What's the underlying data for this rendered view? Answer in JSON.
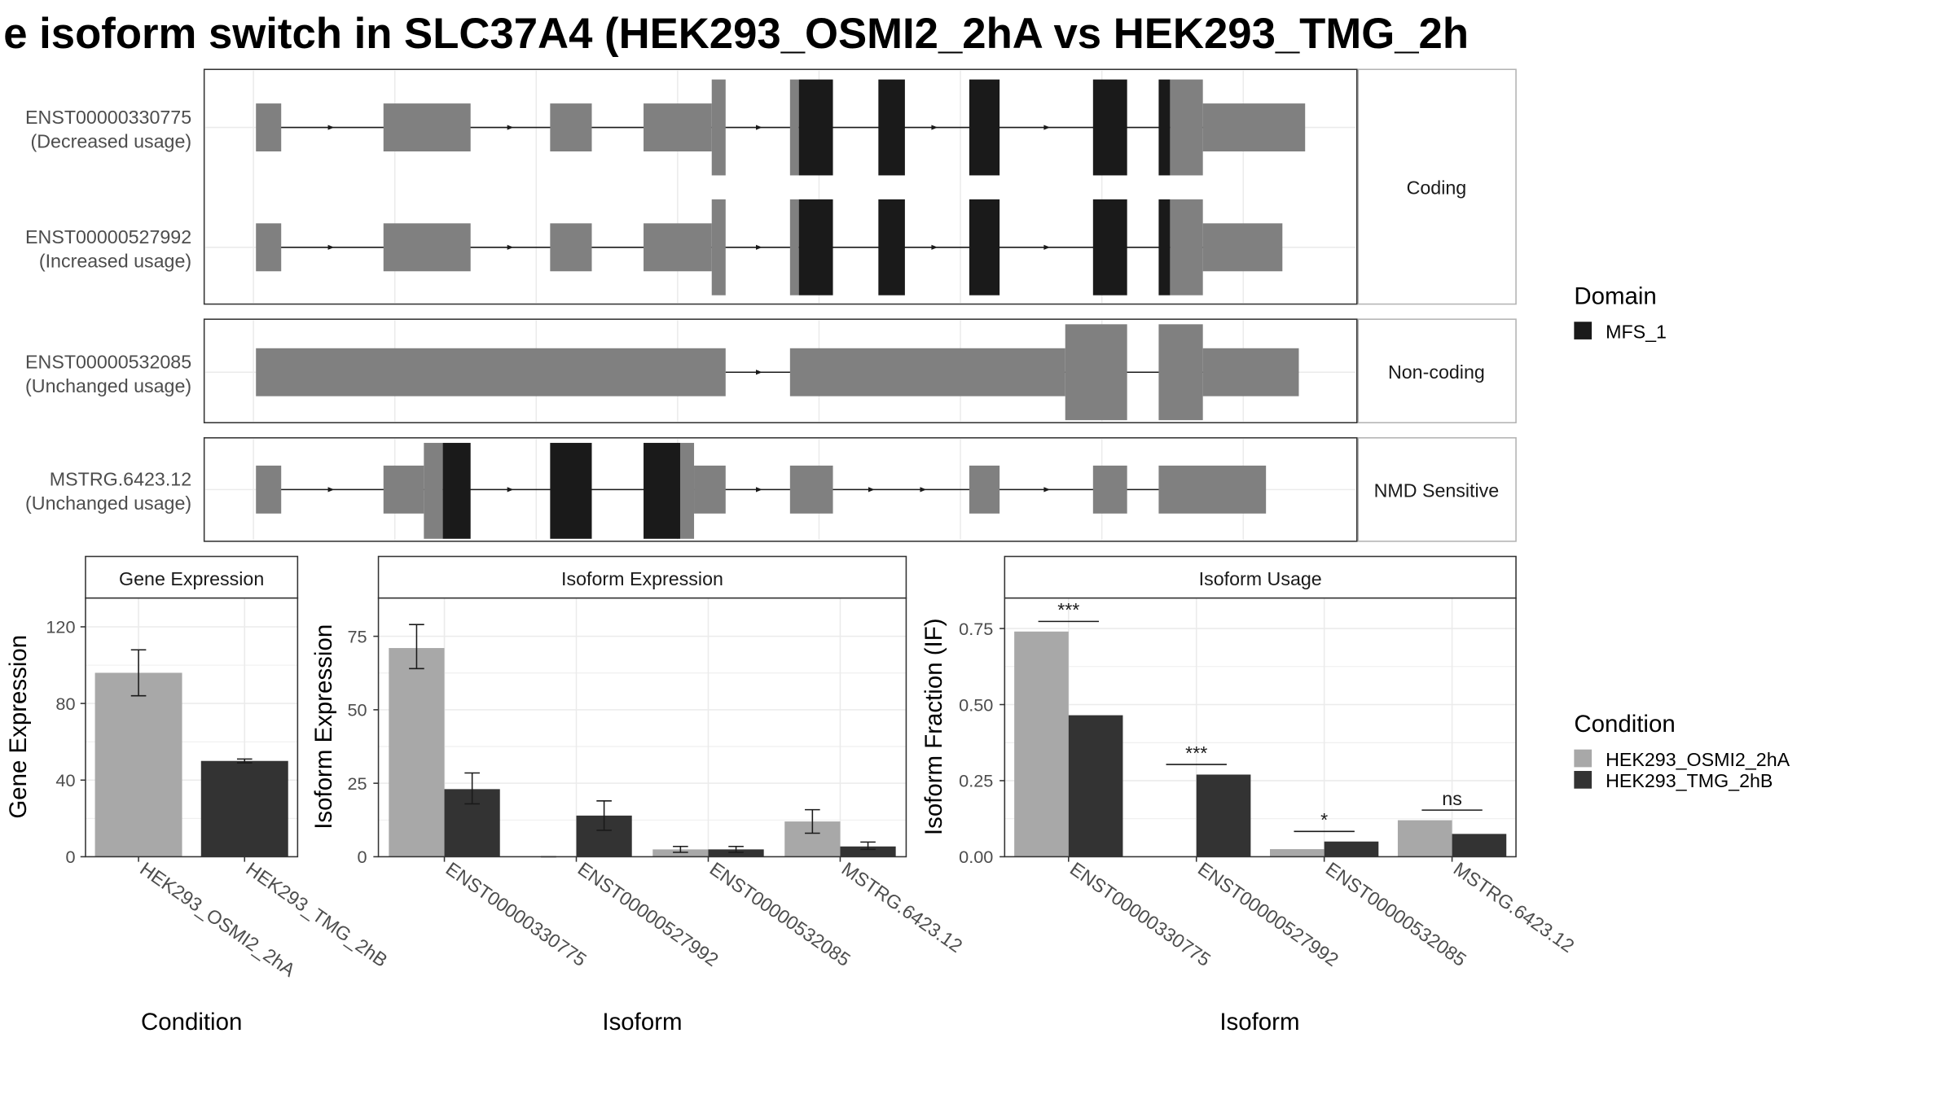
{
  "page": {
    "title": "e isoform switch in SLC37A4 (HEK293_OSMI2_2hA vs HEK293_TMG_2h",
    "colors": {
      "cond_a": "#a8a8a8",
      "cond_b": "#333333",
      "exon": "#808080",
      "domain": "#1a1a1a",
      "grid": "#ebebeb",
      "frame": "#333333",
      "strip_border": "#b3b3b3"
    }
  },
  "structure": {
    "panels": [
      {
        "label": "Coding",
        "isoforms": [
          {
            "id": "ENST00000330775",
            "usage": "(Decreased usage)"
          },
          {
            "id": "ENST00000527992",
            "usage": "(Increased usage)"
          }
        ]
      },
      {
        "label": "Non-coding",
        "isoforms": [
          {
            "id": "ENST00000532085",
            "usage": "(Unchanged usage)"
          }
        ]
      },
      {
        "label": "NMD Sensitive",
        "isoforms": [
          {
            "id": "MSTRG.6423.12",
            "usage": "(Unchanged usage)"
          }
        ]
      }
    ]
  },
  "legend": {
    "domain": {
      "title": "Domain",
      "items": [
        {
          "label": "MFS_1",
          "color": "#1a1a1a"
        }
      ]
    },
    "condition": {
      "title": "Condition",
      "items": [
        {
          "label": "HEK293_OSMI2_2hA",
          "color": "#a8a8a8"
        },
        {
          "label": "HEK293_TMG_2hB",
          "color": "#333333"
        }
      ]
    }
  },
  "chart_data": [
    {
      "type": "bar",
      "title": "Gene Expression",
      "xlabel": "Condition",
      "ylabel": "Gene Expression",
      "categories": [
        "HEK293_OSMI2_2hA",
        "HEK293_TMG_2hB"
      ],
      "values": [
        96,
        50
      ],
      "error_low": [
        84,
        49
      ],
      "error_high": [
        108,
        51
      ],
      "ylim": [
        0,
        135
      ],
      "yticks": [
        0,
        40,
        80,
        120
      ],
      "ytick_labels": [
        "0",
        "40",
        "80",
        "120"
      ]
    },
    {
      "type": "bar",
      "title": "Isoform Expression",
      "xlabel": "Isoform",
      "ylabel": "Isoform Expression",
      "categories": [
        "ENST00000330775",
        "ENST00000527992",
        "ENST00000532085",
        "MSTRG.6423.12"
      ],
      "ylim": [
        0,
        88
      ],
      "yticks": [
        0,
        25,
        50,
        75
      ],
      "ytick_labels": [
        "0",
        "25",
        "50",
        "75"
      ],
      "series": [
        {
          "name": "HEK293_OSMI2_2hA",
          "values": [
            71,
            0,
            2.5,
            12
          ],
          "error_low": [
            64,
            0,
            1.5,
            8
          ],
          "error_high": [
            79,
            0,
            3.5,
            16
          ]
        },
        {
          "name": "HEK293_TMG_2hB",
          "values": [
            23,
            14,
            2.5,
            3.5
          ],
          "error_low": [
            18,
            9,
            1.5,
            2.5
          ],
          "error_high": [
            28.5,
            19,
            3.5,
            5
          ]
        }
      ]
    },
    {
      "type": "bar",
      "title": "Isoform Usage",
      "xlabel": "Isoform",
      "ylabel": "Isoform Fraction (IF)",
      "categories": [
        "ENST00000330775",
        "ENST00000527992",
        "ENST00000532085",
        "MSTRG.6423.12"
      ],
      "ylim": [
        0,
        0.85
      ],
      "yticks": [
        0,
        0.25,
        0.5,
        0.75
      ],
      "ytick_labels": [
        "0.00",
        "0.25",
        "0.50",
        "0.75"
      ],
      "series": [
        {
          "name": "HEK293_OSMI2_2hA",
          "values": [
            0.74,
            0.0,
            0.025,
            0.12
          ]
        },
        {
          "name": "HEK293_TMG_2hB",
          "values": [
            0.465,
            0.27,
            0.05,
            0.075
          ]
        }
      ],
      "significance": [
        "***",
        "***",
        "*",
        "ns"
      ]
    }
  ]
}
